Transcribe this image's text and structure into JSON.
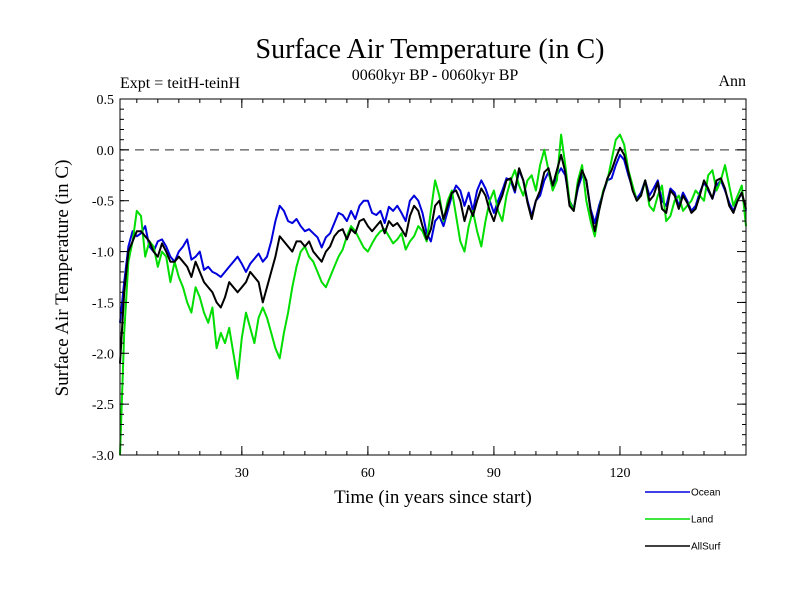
{
  "chart_data": {
    "type": "line",
    "title": "Surface Air Temperature (in C)",
    "subtitle": "0060kyr BP - 0060kyr BP",
    "experiment_label": "Expt = teitH-teinH",
    "season_label": "Ann",
    "xlabel": "Time (in years since start)",
    "ylabel": "Surface Air Temperature (in C)",
    "xlim": [
      1,
      150
    ],
    "ylim": [
      -3.0,
      0.5
    ],
    "xticks": [
      30,
      60,
      90,
      120
    ],
    "yticks": [
      "-3.0",
      "-2.5",
      "-2.0",
      "-1.5",
      "-1.0",
      "-0.5",
      "0.0",
      "0.5"
    ],
    "reference_line": 0.0,
    "legend_position": "bottom-right",
    "x_start": 1,
    "x_step": 1,
    "series": [
      {
        "name": "Ocean",
        "color": "#0000dd",
        "values": [
          -1.7,
          -1.3,
          -0.95,
          -0.8,
          -0.85,
          -0.82,
          -0.75,
          -0.95,
          -1.0,
          -0.9,
          -0.88,
          -0.95,
          -1.05,
          -1.1,
          -1.0,
          -0.95,
          -0.88,
          -1.08,
          -1.05,
          -1.0,
          -1.18,
          -1.15,
          -1.2,
          -1.22,
          -1.25,
          -1.2,
          -1.15,
          -1.1,
          -1.05,
          -1.12,
          -1.2,
          -1.12,
          -1.07,
          -1.02,
          -1.1,
          -1.05,
          -0.9,
          -0.7,
          -0.55,
          -0.6,
          -0.7,
          -0.72,
          -0.68,
          -0.75,
          -0.8,
          -0.78,
          -0.82,
          -0.86,
          -0.96,
          -0.86,
          -0.82,
          -0.72,
          -0.62,
          -0.64,
          -0.7,
          -0.6,
          -0.68,
          -0.55,
          -0.5,
          -0.5,
          -0.62,
          -0.64,
          -0.6,
          -0.72,
          -0.56,
          -0.6,
          -0.55,
          -0.62,
          -0.7,
          -0.5,
          -0.45,
          -0.5,
          -0.62,
          -0.82,
          -0.9,
          -0.7,
          -0.65,
          -0.75,
          -0.6,
          -0.45,
          -0.35,
          -0.4,
          -0.55,
          -0.42,
          -0.6,
          -0.4,
          -0.3,
          -0.38,
          -0.5,
          -0.62,
          -0.5,
          -0.4,
          -0.28,
          -0.3,
          -0.42,
          -0.2,
          -0.3,
          -0.5,
          -0.65,
          -0.5,
          -0.45,
          -0.3,
          -0.22,
          -0.38,
          -0.25,
          -0.18,
          -0.25,
          -0.5,
          -0.58,
          -0.38,
          -0.25,
          -0.3,
          -0.58,
          -0.72,
          -0.55,
          -0.42,
          -0.3,
          -0.28,
          -0.15,
          -0.05,
          -0.1,
          -0.25,
          -0.38,
          -0.48,
          -0.42,
          -0.3,
          -0.45,
          -0.38,
          -0.3,
          -0.5,
          -0.55,
          -0.38,
          -0.42,
          -0.55,
          -0.42,
          -0.5,
          -0.6,
          -0.55,
          -0.42,
          -0.32,
          -0.4,
          -0.48,
          -0.35,
          -0.3,
          -0.4,
          -0.52,
          -0.6,
          -0.5,
          -0.42,
          -0.6
        ]
      },
      {
        "name": "Land",
        "color": "#00dd00",
        "values": [
          -3.0,
          -1.8,
          -1.1,
          -0.9,
          -0.6,
          -0.65,
          -1.05,
          -0.9,
          -0.95,
          -1.15,
          -1.0,
          -1.05,
          -1.3,
          -1.1,
          -1.25,
          -1.35,
          -1.5,
          -1.6,
          -1.35,
          -1.45,
          -1.6,
          -1.7,
          -1.55,
          -1.95,
          -1.8,
          -1.9,
          -1.75,
          -2.0,
          -2.25,
          -1.85,
          -1.6,
          -1.75,
          -1.9,
          -1.65,
          -1.55,
          -1.65,
          -1.8,
          -1.95,
          -2.05,
          -1.8,
          -1.6,
          -1.35,
          -1.15,
          -1.0,
          -0.95,
          -1.05,
          -1.1,
          -1.2,
          -1.3,
          -1.35,
          -1.25,
          -1.15,
          -1.05,
          -0.98,
          -0.85,
          -0.75,
          -0.8,
          -0.88,
          -0.96,
          -1.0,
          -0.92,
          -0.85,
          -0.8,
          -0.78,
          -0.85,
          -0.92,
          -0.88,
          -0.82,
          -0.98,
          -0.9,
          -0.85,
          -0.75,
          -0.8,
          -0.9,
          -0.6,
          -0.3,
          -0.45,
          -0.7,
          -0.5,
          -0.4,
          -0.65,
          -0.9,
          -1.0,
          -0.75,
          -0.6,
          -0.8,
          -0.95,
          -0.7,
          -0.5,
          -0.4,
          -0.6,
          -0.7,
          -0.45,
          -0.3,
          -0.2,
          -0.35,
          -0.45,
          -0.3,
          -0.25,
          -0.4,
          -0.15,
          0.0,
          -0.2,
          -0.4,
          -0.3,
          0.15,
          -0.15,
          -0.5,
          -0.6,
          -0.3,
          -0.15,
          -0.5,
          -0.7,
          -0.85,
          -0.6,
          -0.4,
          -0.3,
          -0.1,
          0.1,
          0.15,
          0.05,
          -0.2,
          -0.35,
          -0.5,
          -0.45,
          -0.3,
          -0.55,
          -0.6,
          -0.45,
          -0.35,
          -0.7,
          -0.65,
          -0.5,
          -0.45,
          -0.6,
          -0.55,
          -0.5,
          -0.4,
          -0.45,
          -0.5,
          -0.25,
          -0.2,
          -0.4,
          -0.3,
          -0.15,
          -0.35,
          -0.55,
          -0.45,
          -0.35,
          -0.75
        ]
      },
      {
        "name": "AllSurf",
        "color": "#000000",
        "values": [
          -2.1,
          -1.4,
          -1.0,
          -0.9,
          -0.8,
          -0.8,
          -0.85,
          -0.9,
          -1.0,
          -1.05,
          -0.92,
          -1.0,
          -1.1,
          -1.1,
          -1.05,
          -1.1,
          -1.15,
          -1.25,
          -1.1,
          -1.2,
          -1.3,
          -1.35,
          -1.4,
          -1.5,
          -1.55,
          -1.45,
          -1.3,
          -1.35,
          -1.4,
          -1.35,
          -1.3,
          -1.2,
          -1.25,
          -1.3,
          -1.5,
          -1.35,
          -1.2,
          -1.05,
          -0.85,
          -0.9,
          -0.95,
          -1.0,
          -0.9,
          -0.9,
          -0.95,
          -0.9,
          -1.0,
          -1.05,
          -1.1,
          -1.0,
          -0.95,
          -0.85,
          -0.8,
          -0.78,
          -0.88,
          -0.78,
          -0.82,
          -0.7,
          -0.68,
          -0.75,
          -0.8,
          -0.75,
          -0.7,
          -0.82,
          -0.7,
          -0.75,
          -0.72,
          -0.78,
          -0.85,
          -0.65,
          -0.55,
          -0.6,
          -0.75,
          -0.88,
          -0.78,
          -0.55,
          -0.5,
          -0.68,
          -0.55,
          -0.42,
          -0.4,
          -0.5,
          -0.7,
          -0.55,
          -0.65,
          -0.5,
          -0.38,
          -0.45,
          -0.6,
          -0.7,
          -0.55,
          -0.45,
          -0.3,
          -0.28,
          -0.4,
          -0.18,
          -0.3,
          -0.52,
          -0.68,
          -0.5,
          -0.4,
          -0.22,
          -0.18,
          -0.35,
          -0.2,
          -0.05,
          -0.22,
          -0.55,
          -0.6,
          -0.35,
          -0.2,
          -0.3,
          -0.6,
          -0.8,
          -0.6,
          -0.42,
          -0.28,
          -0.2,
          -0.08,
          0.02,
          -0.05,
          -0.22,
          -0.4,
          -0.5,
          -0.45,
          -0.3,
          -0.5,
          -0.45,
          -0.32,
          -0.58,
          -0.62,
          -0.4,
          -0.45,
          -0.58,
          -0.45,
          -0.52,
          -0.62,
          -0.58,
          -0.45,
          -0.3,
          -0.38,
          -0.48,
          -0.3,
          -0.28,
          -0.38,
          -0.55,
          -0.62,
          -0.5,
          -0.42,
          -0.58
        ]
      }
    ]
  }
}
